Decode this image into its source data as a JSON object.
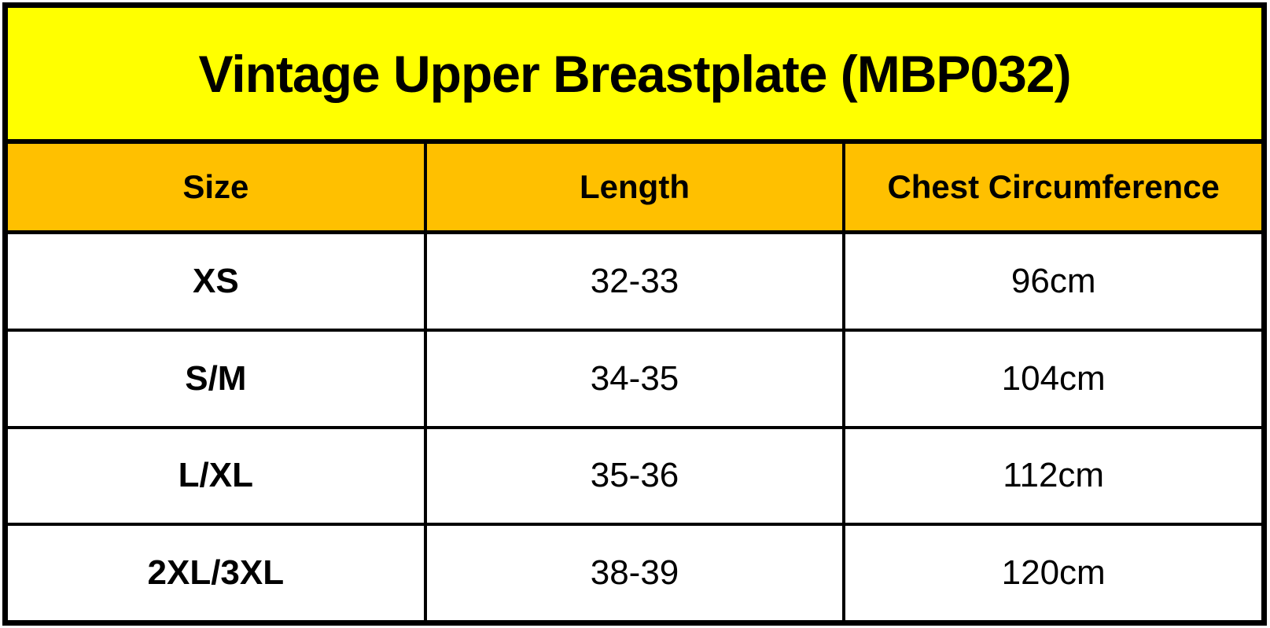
{
  "chart_data": {
    "type": "table",
    "title": "Vintage Upper Breastplate (MBP032)",
    "columns": [
      "Size",
      "Length",
      "Chest Circumference"
    ],
    "rows": [
      [
        "XS",
        "32-33",
        "96cm"
      ],
      [
        "S/M",
        "34-35",
        "104cm"
      ],
      [
        "L/XL",
        "35-36",
        "112cm"
      ],
      [
        "2XL/3XL",
        "38-39",
        "120cm"
      ]
    ],
    "layout": {
      "title_bg": "#FFFF00",
      "header_bg": "#FFC000",
      "row_bg": "#FFFFFF",
      "border_color": "#000000",
      "text_color": "#000000"
    }
  },
  "table": {
    "title": "Vintage Upper Breastplate (MBP032)",
    "headers": {
      "size": "Size",
      "length": "Length",
      "chest": "Chest Circumference"
    },
    "rows": [
      {
        "size": "XS",
        "length": "32-33",
        "chest": "96cm"
      },
      {
        "size": "S/M",
        "length": "34-35",
        "chest": "104cm"
      },
      {
        "size": "L/XL",
        "length": "35-36",
        "chest": "112cm"
      },
      {
        "size": "2XL/3XL",
        "length": "38-39",
        "chest": "120cm"
      }
    ]
  }
}
